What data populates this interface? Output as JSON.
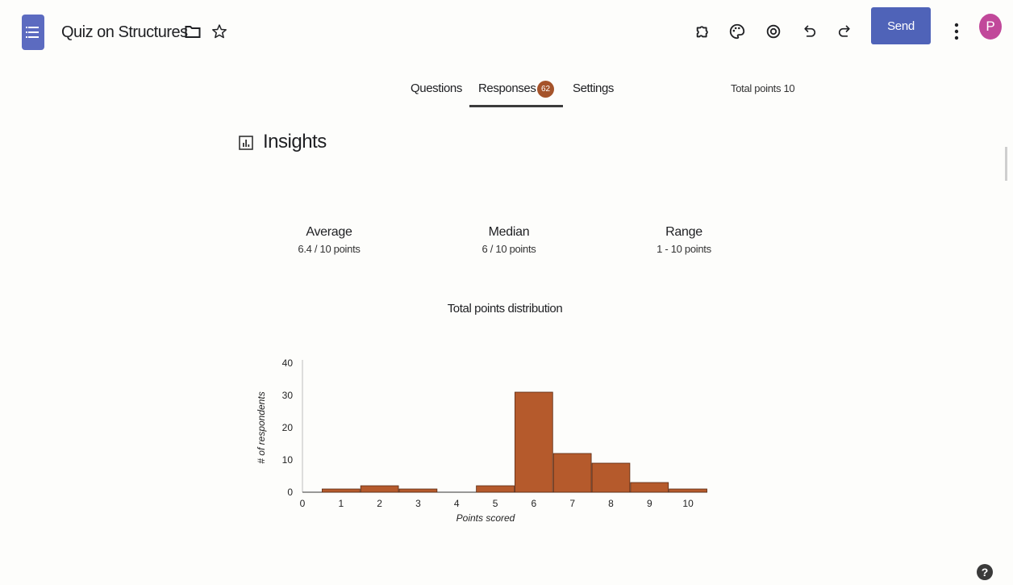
{
  "header": {
    "title": "Quiz on Structures",
    "send_label": "Send",
    "avatar_initial": "P"
  },
  "tabs": [
    {
      "label": "Questions",
      "active": false
    },
    {
      "label": "Responses",
      "active": true,
      "badge": "62"
    },
    {
      "label": "Settings",
      "active": false
    }
  ],
  "total_points": "Total points 10",
  "insights": {
    "title": "Insights",
    "stats": [
      {
        "label": "Average",
        "value": "6.4 / 10 points"
      },
      {
        "label": "Median",
        "value": "6 / 10 points"
      },
      {
        "label": "Range",
        "value": "1 - 10 points"
      }
    ]
  },
  "chart_data": {
    "type": "bar",
    "title": "Total points distribution",
    "xlabel": "Points scored",
    "ylabel": "# of respondents",
    "x": [
      1,
      2,
      3,
      4,
      5,
      6,
      7,
      8,
      9,
      10
    ],
    "values": [
      1,
      2,
      1,
      0,
      2,
      31,
      12,
      9,
      3,
      1
    ],
    "x_ticks": [
      "0",
      "1",
      "2",
      "3",
      "4",
      "5",
      "6",
      "7",
      "8",
      "9",
      "10"
    ],
    "y_ticks": [
      "0",
      "10",
      "20",
      "30",
      "40"
    ],
    "xlim": [
      0,
      10.5
    ],
    "ylim": [
      0,
      40
    ],
    "bar_color": "#b55a2c",
    "grid": false
  },
  "colors": {
    "accent": "#4f63b8",
    "avatar": "#c1489a",
    "badge": "#a5532a"
  }
}
